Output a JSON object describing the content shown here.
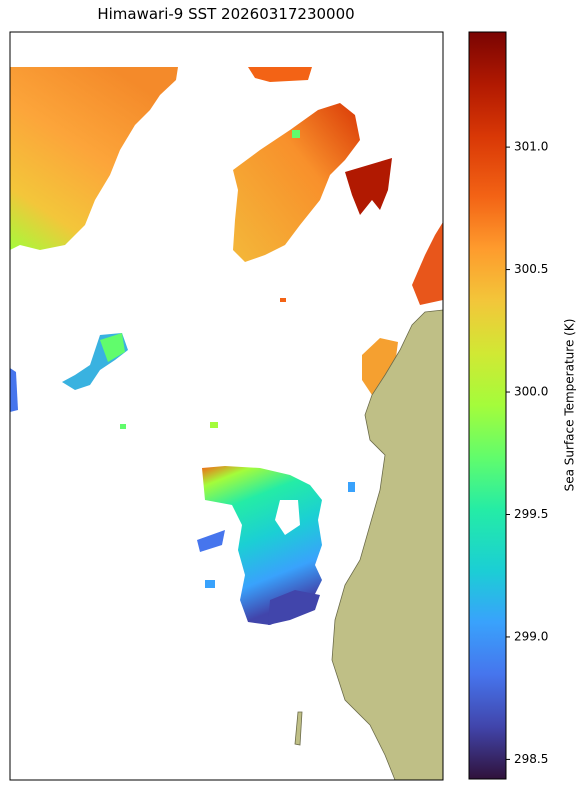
{
  "chart_data": {
    "type": "map",
    "title": "Himawari-9 SST 20260317230000",
    "colorbar": {
      "label": "Sea Surface Temperature (K)",
      "colormap": "turbo",
      "clim": [
        298.42,
        301.47
      ],
      "ticks": [
        298.5,
        {
          "value": 299.0,
          "label": "299.0"
        },
        299.5,
        {
          "value": 300.0,
          "label": "300.0"
        },
        300.5,
        {
          "value": 301.0,
          "label": "301.0"
        }
      ]
    },
    "land_color": "#bfbf86"
  }
}
